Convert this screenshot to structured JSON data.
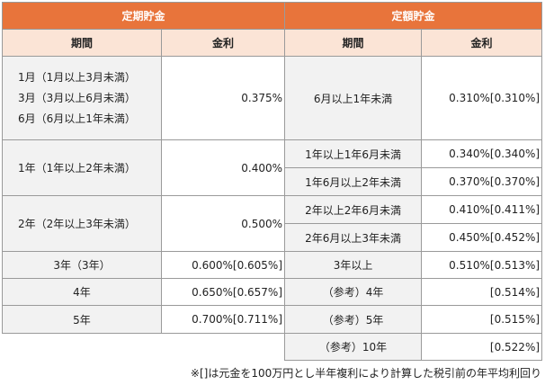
{
  "left": {
    "title": "定期貯金",
    "col_period": "期間",
    "col_rate": "金利",
    "rows": [
      {
        "period_lines": [
          "1月（1月以上3月未満）",
          "3月（3月以上6月未満）",
          "6月（6月以上1年未満）"
        ],
        "rate": "0.375%"
      },
      {
        "period": "1年（1年以上2年未満）",
        "rate": "0.400%"
      },
      {
        "period": "2年（2年以上3年未満）",
        "rate": "0.500%"
      },
      {
        "period": "3年（3年）",
        "rate": "0.600%[0.605%]"
      },
      {
        "period": "4年",
        "rate": "0.650%[0.657%]"
      },
      {
        "period": "5年",
        "rate": "0.700%[0.711%]"
      }
    ]
  },
  "right": {
    "title": "定額貯金",
    "col_period": "期間",
    "col_rate": "金利",
    "rows": [
      {
        "period": "6月以上1年未満",
        "rate": "0.310%[0.310%]"
      },
      {
        "period": "1年以上1年6月未満",
        "rate": "0.340%[0.340%]"
      },
      {
        "period": "1年6月以上2年未満",
        "rate": "0.370%[0.370%]"
      },
      {
        "period": "2年以上2年6月未満",
        "rate": "0.410%[0.411%]"
      },
      {
        "period": "2年6月以上3年未満",
        "rate": "0.450%[0.452%]"
      },
      {
        "period": "3年以上",
        "rate": "0.510%[0.513%]"
      },
      {
        "period": "（参考）4年",
        "rate": "[0.514%]"
      },
      {
        "period": "（参考）5年",
        "rate": "[0.515%]"
      },
      {
        "period": "（参考）10年",
        "rate": "[0.522%]"
      }
    ]
  },
  "note": "※[]は元金を100万円とし半年複利により計算した税引前の年平均利回り"
}
